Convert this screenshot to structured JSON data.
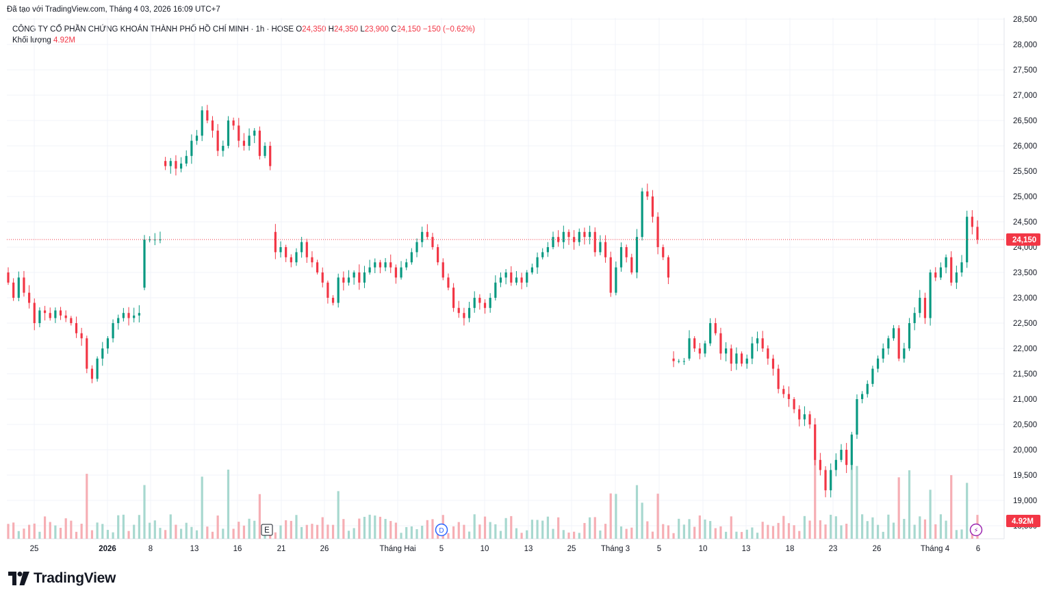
{
  "header": {
    "credit": "Đã tạo với TradingView.com, Tháng 4 03, 2026 16:09 UTC+7",
    "symbol_line": "CÔNG TY CỔ PHẦN CHỨNG KHOÁN THÀNH PHỐ HỒ CHÍ MINH · 1h · HOSE",
    "o_label": "O",
    "o_value": "24,350",
    "h_label": "H",
    "h_value": "24,350",
    "l_label": "L",
    "l_value": "23,900",
    "c_label": "C",
    "c_value": "24,150",
    "change": "−150 (−0.62%)",
    "volume_label": "Khối lượng",
    "volume_value": "4.92M"
  },
  "brand": {
    "name": "TradingView"
  },
  "colors": {
    "up": "#089981",
    "down": "#f23645",
    "up_vol": "#a7d8cf",
    "down_vol": "#f6aeb4",
    "grid": "#f0f3fa",
    "price_line": "#f23645"
  },
  "chart_data": {
    "type": "candlestick",
    "interval": "1h",
    "exchange": "HOSE",
    "y_axis": {
      "ticks": [
        18500,
        19000,
        19500,
        20000,
        20500,
        21000,
        21500,
        22000,
        22500,
        23000,
        23500,
        24000,
        24500,
        25000,
        25500,
        26000,
        26500,
        27000,
        27500,
        28000,
        28500
      ],
      "tick_labels": [
        "18,500",
        "19,000",
        "19,500",
        "20,000",
        "20,500",
        "21,000",
        "21,500",
        "22,000",
        "22,500",
        "23,000",
        "23,500",
        "24,000",
        "24,500",
        "25,000",
        "25,500",
        "26,000",
        "26,500",
        "27,000",
        "27,500",
        "28,000",
        "28,500"
      ],
      "range": [
        18400,
        28500
      ]
    },
    "x_axis": {
      "tick_labels": [
        "25",
        "2026",
        "8",
        "13",
        "16",
        "21",
        "26",
        "Tháng Hai",
        "5",
        "10",
        "13",
        "25",
        "Tháng 3",
        "5",
        "10",
        "13",
        "18",
        "23",
        "26",
        "Tháng 4",
        "6"
      ],
      "bold": [
        "2026"
      ]
    },
    "last_price": 24150,
    "last_price_label": "24,150",
    "last_volume_label": "4.92M",
    "markers": [
      {
        "label": "E",
        "type": "earnings"
      },
      {
        "label": "D",
        "type": "dividend"
      },
      {
        "label": "⚡",
        "type": "event"
      }
    ],
    "segments": [
      {
        "start": 23500,
        "points": [
          23300,
          23000,
          23400,
          23100,
          22900,
          22500,
          22750,
          22700,
          22600,
          22750,
          22650,
          22600,
          22500,
          22300,
          22200,
          21600,
          21400,
          21800,
          22000,
          22200,
          22500,
          22600,
          22700,
          22600,
          22650,
          22700
        ]
      },
      {
        "start": 23200,
        "points": [
          24150,
          24150,
          24150,
          24150
        ]
      },
      {
        "start": 25700,
        "points": [
          25600,
          25700,
          25550,
          25650,
          25800,
          26100,
          26200,
          26700,
          26500,
          26300,
          25900,
          26000,
          26500,
          26400,
          26100,
          26000,
          26200,
          26300,
          25800,
          26000,
          25600
        ]
      },
      {
        "start": 24300,
        "points": [
          23900,
          24000,
          23800,
          23700,
          23900,
          24100,
          23800,
          23700,
          23500,
          23300,
          23000,
          22900,
          23400,
          23300,
          23400,
          23500,
          23300,
          23500,
          23600,
          23700,
          23600,
          23700,
          23600,
          23400,
          23600,
          23700,
          23900,
          24100,
          24300,
          24200,
          24000,
          23700,
          23400,
          23200,
          22800,
          22700,
          22600,
          22800,
          23000,
          22900,
          22800,
          23000,
          23300,
          23400,
          23500,
          23300,
          23400,
          23300,
          23500,
          23600,
          23800,
          23900,
          24000,
          24200,
          24100,
          24300,
          24200,
          24100,
          24300,
          24200,
          24300,
          23900,
          24100,
          23800,
          23100,
          23600,
          24000,
          23800,
          23500,
          24200,
          25100,
          25000,
          24600,
          24000,
          23800,
          23400
        ]
      },
      {
        "start": 21800,
        "points": [
          21750,
          21750,
          21750
        ]
      },
      {
        "start": 21800,
        "points": [
          22200,
          22000,
          21900,
          22100,
          22500,
          22300,
          21900,
          22000,
          21700,
          21900,
          21700,
          21800,
          22100,
          22200,
          22000,
          21800,
          21600,
          21200,
          21100,
          21000,
          20800,
          20600,
          20700,
          20500,
          19800,
          19600,
          19200,
          19600,
          19800,
          20000,
          19700,
          20300,
          21000,
          21100,
          21300,
          21600,
          21800,
          22000,
          22200,
          22400,
          21800,
          22000,
          22500,
          22700,
          23000,
          22600,
          23500,
          23400,
          23600,
          23800,
          23300,
          23500,
          23700,
          24600,
          24400,
          24150
        ]
      }
    ],
    "volume": {
      "note": "hourly volume bars, shown under price",
      "scale_label": "Khối lượng"
    }
  }
}
